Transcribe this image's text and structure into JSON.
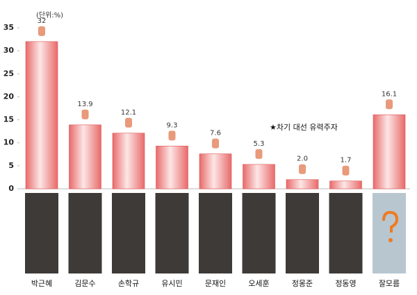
{
  "chart_data": {
    "type": "bar",
    "subtitle": "(단위:%)",
    "annotation": "★차기 대선 유력주자",
    "categories": [
      "박근혜",
      "김문수",
      "손학규",
      "유시민",
      "문재인",
      "오세훈",
      "정몽준",
      "정동영",
      "잘모름"
    ],
    "values": [
      32,
      13.9,
      12.1,
      9.3,
      7.6,
      5.3,
      2.0,
      1.7,
      16.1
    ],
    "value_labels": [
      "32",
      "13.9",
      "12.1",
      "9.3",
      "7.6",
      "5.3",
      "2.0",
      "1.7",
      "16.1"
    ],
    "color": "#e86a6a",
    "ylim": [
      0,
      35
    ],
    "yticks": [
      0,
      5,
      10,
      15,
      20,
      25,
      30,
      35
    ],
    "grid": false
  }
}
